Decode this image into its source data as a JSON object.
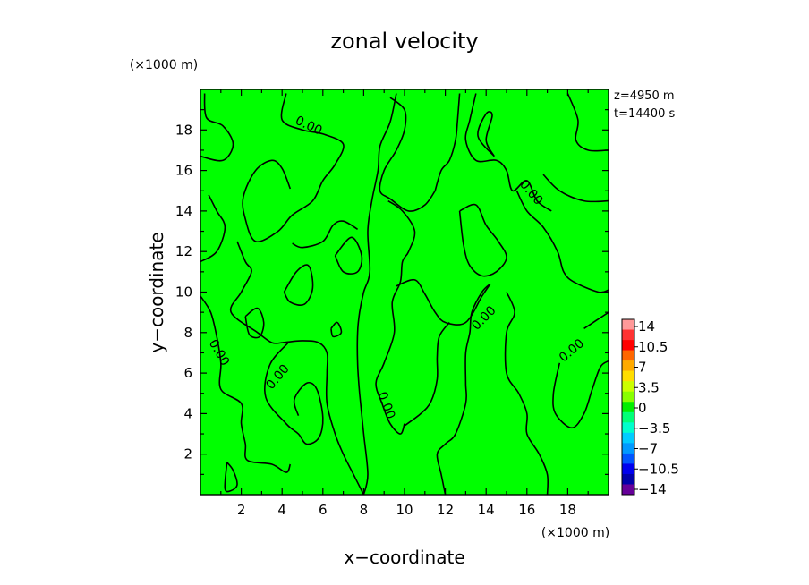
{
  "chart_data": {
    "type": "heatmap",
    "title": "zonal velocity",
    "xlabel": "x−coordinate",
    "ylabel": "y−coordinate",
    "x_unit": "(×1000 m)",
    "y_unit": "(×1000 m)",
    "xlim": [
      0,
      20
    ],
    "ylim": [
      0,
      20
    ],
    "x_ticks": [
      2,
      4,
      6,
      8,
      10,
      12,
      14,
      16,
      18
    ],
    "y_ticks": [
      2,
      4,
      6,
      8,
      10,
      12,
      14,
      16,
      18
    ],
    "annotations": [
      "z=4950 m",
      "t=14400 s"
    ],
    "field_color": "#00ff00",
    "colorbar": {
      "labels": [
        "14",
        "10.5",
        "7",
        "3.5",
        "0",
        "−3.5",
        "−7",
        "−10.5",
        "−14"
      ],
      "colors": [
        "#ff9999",
        "#ff3333",
        "#ff0000",
        "#ff6600",
        "#ffaa00",
        "#ffdd00",
        "#ccff00",
        "#88ff00",
        "#00ee00",
        "#00ff77",
        "#00ffcc",
        "#00ccff",
        "#0099ff",
        "#0055ff",
        "#0000ee",
        "#0000aa",
        "#660099"
      ]
    },
    "contour_labels": [
      {
        "text": "0.00",
        "x": 5.3,
        "y": 18.2
      },
      {
        "text": "0.00",
        "x": 16.2,
        "y": 14.9
      },
      {
        "text": "0.00",
        "x": 13.9,
        "y": 8.7
      },
      {
        "text": "0.00",
        "x": 0.9,
        "y": 7.0
      },
      {
        "text": "0.00",
        "x": 3.8,
        "y": 5.8
      },
      {
        "text": "0.00",
        "x": 9.1,
        "y": 4.4
      },
      {
        "text": "0.00",
        "x": 18.2,
        "y": 7.1
      }
    ],
    "contour_lines": [
      [
        [
          0.2,
          19.8
        ],
        [
          0.3,
          18.6
        ],
        [
          1.1,
          18.2
        ],
        [
          1.6,
          17.3
        ],
        [
          1.1,
          16.5
        ],
        [
          0.0,
          16.7
        ]
      ],
      [
        [
          4.2,
          19.8
        ],
        [
          4.0,
          18.5
        ],
        [
          5.0,
          18.0
        ],
        [
          6.0,
          17.8
        ],
        [
          7.0,
          17.3
        ],
        [
          6.6,
          16.3
        ],
        [
          6.0,
          15.5
        ],
        [
          5.5,
          14.5
        ],
        [
          4.5,
          13.8
        ],
        [
          3.8,
          13.0
        ],
        [
          2.7,
          12.5
        ],
        [
          2.2,
          13.6
        ],
        [
          2.1,
          14.7
        ],
        [
          2.7,
          16.0
        ],
        [
          3.5,
          16.5
        ],
        [
          4.0,
          16.1
        ],
        [
          4.4,
          15.1
        ]
      ],
      [
        [
          0.0,
          11.5
        ],
        [
          0.8,
          12.0
        ],
        [
          1.2,
          13.2
        ],
        [
          0.8,
          14.0
        ],
        [
          0.4,
          14.8
        ]
      ],
      [
        [
          0.0,
          9.8
        ],
        [
          0.5,
          9.0
        ],
        [
          0.8,
          7.8
        ],
        [
          1.0,
          6.5
        ],
        [
          1.0,
          5.2
        ],
        [
          2.0,
          4.5
        ],
        [
          2.0,
          3.5
        ],
        [
          2.2,
          2.5
        ],
        [
          2.3,
          1.7
        ],
        [
          3.5,
          1.5
        ],
        [
          4.2,
          1.1
        ],
        [
          4.4,
          1.5
        ]
      ],
      [
        [
          1.3,
          1.6
        ],
        [
          1.6,
          1.2
        ],
        [
          1.8,
          0.5
        ],
        [
          1.5,
          0.2
        ],
        [
          1.2,
          0.3
        ],
        [
          1.3,
          1.6
        ]
      ],
      [
        [
          2.2,
          8.8
        ],
        [
          2.8,
          9.2
        ],
        [
          3.1,
          8.5
        ],
        [
          2.9,
          7.8
        ],
        [
          2.4,
          7.9
        ],
        [
          2.2,
          8.8
        ]
      ],
      [
        [
          4.1,
          10.0
        ],
        [
          4.7,
          11.0
        ],
        [
          5.3,
          11.3
        ],
        [
          5.5,
          10.2
        ],
        [
          5.1,
          9.4
        ],
        [
          4.4,
          9.5
        ],
        [
          4.1,
          10.0
        ]
      ],
      [
        [
          6.6,
          11.8
        ],
        [
          7.4,
          12.7
        ],
        [
          7.9,
          11.8
        ],
        [
          7.7,
          11.0
        ],
        [
          7.0,
          11.0
        ],
        [
          6.6,
          11.8
        ]
      ],
      [
        [
          6.4,
          8.2
        ],
        [
          6.7,
          8.5
        ],
        [
          6.9,
          8.0
        ],
        [
          6.5,
          7.8
        ],
        [
          6.4,
          8.2
        ]
      ],
      [
        [
          4.3,
          7.5
        ],
        [
          3.4,
          6.4
        ],
        [
          3.2,
          4.8
        ],
        [
          4.2,
          3.5
        ],
        [
          4.8,
          3.0
        ],
        [
          5.2,
          2.5
        ],
        [
          5.8,
          2.8
        ],
        [
          6.0,
          3.8
        ],
        [
          5.7,
          5.2
        ],
        [
          5.2,
          5.5
        ],
        [
          4.6,
          4.7
        ],
        [
          4.8,
          3.9
        ]
      ],
      [
        [
          4.0,
          7.5
        ],
        [
          5.0,
          7.6
        ],
        [
          5.8,
          7.5
        ],
        [
          6.2,
          7.0
        ],
        [
          6.2,
          6.0
        ],
        [
          6.2,
          4.5
        ],
        [
          6.6,
          3.0
        ],
        [
          7.0,
          2.0
        ],
        [
          7.5,
          1.0
        ],
        [
          8.0,
          0.0
        ]
      ],
      [
        [
          1.8,
          12.5
        ],
        [
          2.2,
          11.5
        ],
        [
          2.5,
          11.0
        ],
        [
          2.0,
          10.0
        ],
        [
          1.5,
          9.0
        ],
        [
          2.8,
          8.0
        ],
        [
          3.5,
          7.5
        ],
        [
          4.0,
          7.5
        ]
      ],
      [
        [
          9.3,
          19.6
        ],
        [
          10.0,
          19.0
        ],
        [
          10.0,
          18.0
        ],
        [
          9.6,
          17.0
        ],
        [
          9.0,
          16.0
        ],
        [
          8.8,
          15.0
        ],
        [
          9.3,
          14.6
        ],
        [
          10.2,
          14.0
        ],
        [
          11.0,
          14.3
        ],
        [
          11.5,
          15.0
        ]
      ],
      [
        [
          9.6,
          19.8
        ],
        [
          9.3,
          18.4
        ],
        [
          8.8,
          17.2
        ],
        [
          8.7,
          16.0
        ],
        [
          8.4,
          14.5
        ],
        [
          8.2,
          13.0
        ],
        [
          8.3,
          11.0
        ],
        [
          8.0,
          10.0
        ],
        [
          7.8,
          9.0
        ],
        [
          7.7,
          8.0
        ],
        [
          7.7,
          6.5
        ],
        [
          7.8,
          5.0
        ],
        [
          8.0,
          3.0
        ],
        [
          8.2,
          1.0
        ],
        [
          8.0,
          0.0
        ]
      ],
      [
        [
          7.7,
          13.1
        ],
        [
          7.0,
          13.5
        ],
        [
          6.5,
          13.3
        ],
        [
          6.0,
          12.5
        ],
        [
          5.0,
          12.2
        ],
        [
          4.5,
          12.4
        ]
      ],
      [
        [
          9.2,
          14.5
        ],
        [
          9.9,
          14.0
        ],
        [
          10.5,
          13.0
        ],
        [
          10.2,
          12.0
        ],
        [
          9.9,
          11.5
        ],
        [
          9.8,
          10.5
        ],
        [
          9.4,
          9.5
        ],
        [
          9.5,
          8.0
        ],
        [
          9.0,
          6.5
        ],
        [
          8.6,
          5.5
        ],
        [
          8.9,
          4.5
        ],
        [
          9.3,
          3.5
        ],
        [
          9.8,
          3.0
        ],
        [
          10.0,
          3.5
        ]
      ],
      [
        [
          9.6,
          10.3
        ],
        [
          10.5,
          10.6
        ],
        [
          11.0,
          9.9
        ],
        [
          11.5,
          9.0
        ],
        [
          12.0,
          8.5
        ],
        [
          13.0,
          8.5
        ],
        [
          13.8,
          9.8
        ],
        [
          14.2,
          10.4
        ]
      ],
      [
        [
          10.0,
          3.4
        ],
        [
          10.8,
          4.0
        ],
        [
          11.3,
          4.6
        ],
        [
          11.6,
          5.7
        ],
        [
          11.6,
          6.8
        ],
        [
          11.7,
          7.8
        ],
        [
          12.2,
          8.5
        ]
      ],
      [
        [
          13.5,
          19.8
        ],
        [
          13.2,
          18.5
        ],
        [
          13.0,
          17.5
        ],
        [
          13.5,
          16.5
        ],
        [
          14.5,
          16.5
        ],
        [
          15.0,
          16.0
        ],
        [
          15.3,
          15.0
        ],
        [
          16.0,
          15.5
        ],
        [
          16.5,
          14.5
        ],
        [
          17.2,
          14.0
        ]
      ],
      [
        [
          11.5,
          15.0
        ],
        [
          11.8,
          16.0
        ],
        [
          12.2,
          16.5
        ],
        [
          12.5,
          17.5
        ],
        [
          12.6,
          18.5
        ],
        [
          12.7,
          19.8
        ]
      ],
      [
        [
          12.7,
          14.0
        ],
        [
          13.5,
          14.3
        ],
        [
          14.0,
          13.3
        ],
        [
          14.6,
          12.5
        ],
        [
          15.0,
          11.7
        ],
        [
          14.5,
          11.0
        ],
        [
          13.8,
          10.8
        ],
        [
          13.2,
          11.3
        ],
        [
          12.9,
          12.3
        ],
        [
          12.7,
          14.0
        ]
      ],
      [
        [
          14.4,
          16.7
        ],
        [
          14.0,
          17.5
        ],
        [
          14.3,
          18.7
        ],
        [
          14.0,
          18.8
        ],
        [
          13.6,
          17.7
        ],
        [
          14.4,
          16.7
        ]
      ],
      [
        [
          15.5,
          15.0
        ],
        [
          16.0,
          14.0
        ],
        [
          16.8,
          13.2
        ],
        [
          17.5,
          12.0
        ],
        [
          17.8,
          11.0
        ],
        [
          18.3,
          10.5
        ],
        [
          19.5,
          10.0
        ],
        [
          20.0,
          10.1
        ]
      ],
      [
        [
          18.0,
          19.8
        ],
        [
          18.5,
          18.5
        ],
        [
          18.4,
          17.5
        ],
        [
          19.0,
          17.0
        ],
        [
          20.0,
          17.0
        ]
      ],
      [
        [
          16.8,
          15.8
        ],
        [
          17.6,
          15.0
        ],
        [
          18.8,
          14.5
        ],
        [
          20.0,
          14.5
        ]
      ],
      [
        [
          14.2,
          10.4
        ],
        [
          13.8,
          10.0
        ],
        [
          13.3,
          9.0
        ],
        [
          13.2,
          8.0
        ],
        [
          13.0,
          7.0
        ],
        [
          13.0,
          5.5
        ],
        [
          13.0,
          4.5
        ],
        [
          12.5,
          3.0
        ],
        [
          12.0,
          2.5
        ],
        [
          11.6,
          2.0
        ],
        [
          11.8,
          1.0
        ],
        [
          12.0,
          0.0
        ]
      ],
      [
        [
          15.0,
          10.0
        ],
        [
          15.4,
          9.0
        ],
        [
          15.0,
          8.0
        ],
        [
          15.0,
          6.0
        ],
        [
          15.6,
          5.0
        ],
        [
          16.0,
          4.0
        ],
        [
          16.0,
          3.0
        ],
        [
          16.6,
          2.0
        ],
        [
          17.0,
          1.0
        ],
        [
          17.0,
          0.0
        ]
      ],
      [
        [
          18.8,
          8.2
        ],
        [
          19.4,
          8.6
        ],
        [
          20.0,
          9.0
        ]
      ],
      [
        [
          17.6,
          6.5
        ],
        [
          17.3,
          5.0
        ],
        [
          17.4,
          4.0
        ],
        [
          18.2,
          3.3
        ],
        [
          18.8,
          4.0
        ],
        [
          19.2,
          5.2
        ],
        [
          19.6,
          6.3
        ],
        [
          20.0,
          6.6
        ]
      ]
    ]
  }
}
